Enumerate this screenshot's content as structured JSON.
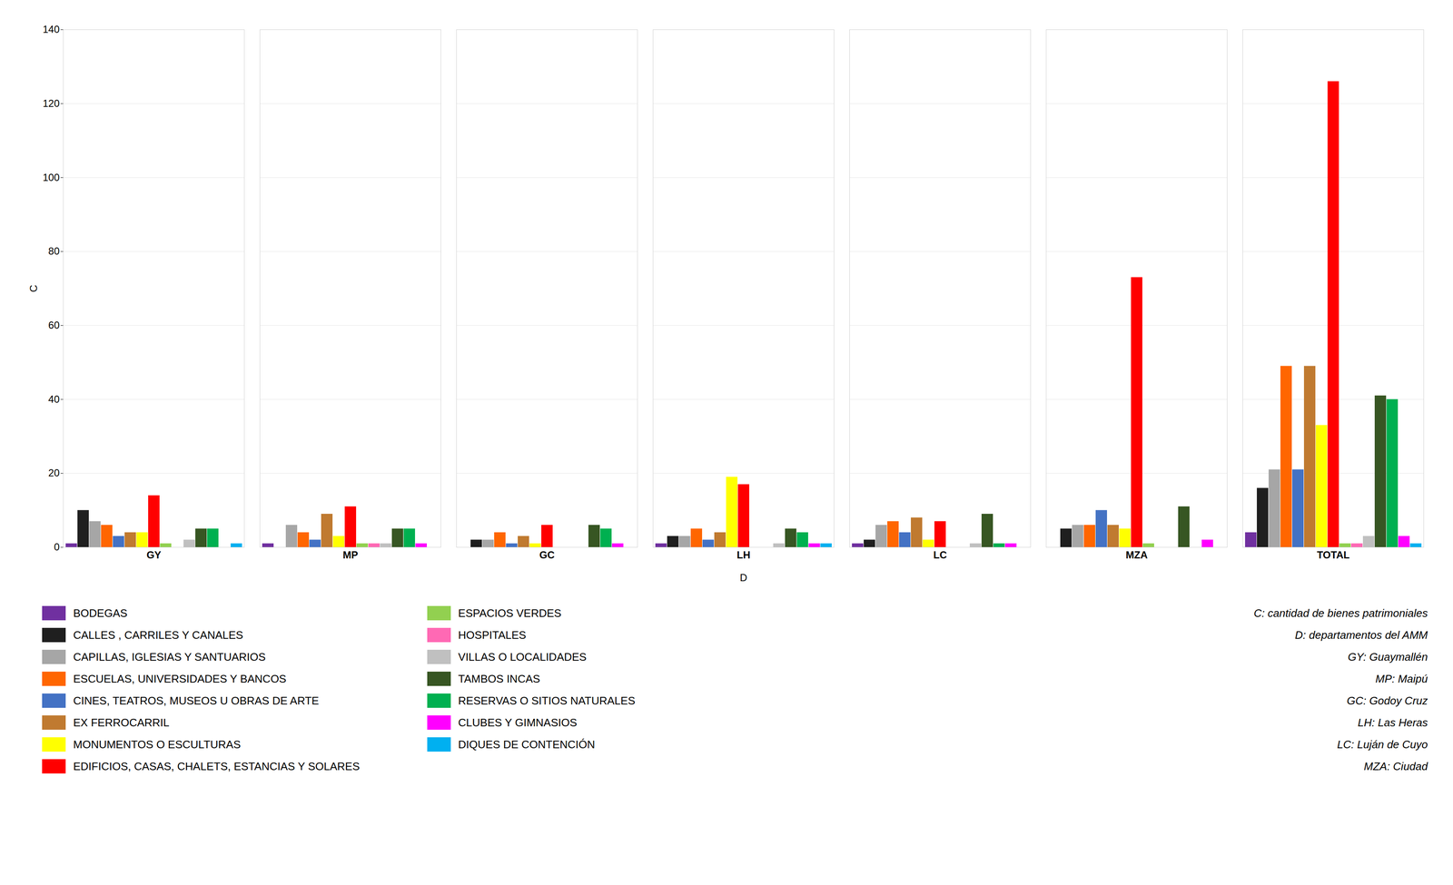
{
  "chart_data": {
    "type": "bar",
    "categories": [
      "GY",
      "MP",
      "GC",
      "LH",
      "LC",
      "MZA",
      "TOTAL"
    ],
    "series": [
      {
        "name": "BODEGAS",
        "color": "#7030A0",
        "values": [
          1,
          1,
          0,
          1,
          1,
          0,
          4
        ]
      },
      {
        "name": "CALLES , CARRILES Y CANALES",
        "color": "#1F1F1F",
        "values": [
          10,
          0,
          2,
          3,
          2,
          5,
          16
        ]
      },
      {
        "name": "CAPILLAS, IGLESIAS Y SANTUARIOS",
        "color": "#A6A6A6",
        "values": [
          7,
          6,
          2,
          3,
          6,
          6,
          21
        ]
      },
      {
        "name": "ESCUELAS, UNIVERSIDADES Y BANCOS",
        "color": "#FF6600",
        "values": [
          6,
          4,
          4,
          5,
          7,
          6,
          49
        ]
      },
      {
        "name": "CINES, TEATROS, MUSEOS U OBRAS DE ARTE",
        "color": "#4472C4",
        "values": [
          3,
          2,
          1,
          2,
          4,
          10,
          21
        ]
      },
      {
        "name": "EX FERROCARRIL",
        "color": "#C07A30",
        "values": [
          4,
          9,
          3,
          4,
          8,
          6,
          49
        ]
      },
      {
        "name": "MONUMENTOS O ESCULTURAS",
        "color": "#FFFF00",
        "values": [
          4,
          3,
          1,
          19,
          2,
          5,
          33
        ]
      },
      {
        "name": "EDIFICIOS, CASAS, CHALETS, ESTANCIAS Y SOLARES",
        "color": "#FF0000",
        "values": [
          14,
          11,
          6,
          17,
          7,
          73,
          126
        ]
      },
      {
        "name": "ESPACIOS VERDES",
        "color": "#92D050",
        "values": [
          1,
          1,
          0,
          0,
          0,
          1,
          1
        ]
      },
      {
        "name": "HOSPITALES",
        "color": "#FF69B4",
        "values": [
          0,
          1,
          0,
          0,
          0,
          0,
          1
        ]
      },
      {
        "name": "VILLAS O LOCALIDADES",
        "color": "#C0C0C0",
        "values": [
          2,
          1,
          0,
          1,
          1,
          0,
          3
        ]
      },
      {
        "name": "TAMBOS INCAS",
        "color": "#375623",
        "values": [
          5,
          5,
          6,
          5,
          9,
          11,
          41
        ]
      },
      {
        "name": "RESERVAS O SITIOS NATURALES",
        "color": "#00B050",
        "values": [
          5,
          5,
          5,
          4,
          1,
          0,
          40
        ]
      },
      {
        "name": "CLUBES Y GIMNASIOS",
        "color": "#FF00FF",
        "values": [
          0,
          1,
          1,
          1,
          1,
          2,
          3
        ]
      },
      {
        "name": "DIQUES DE CONTENCIÓN",
        "color": "#00B0F0",
        "values": [
          1,
          0,
          0,
          1,
          0,
          0,
          1
        ]
      }
    ],
    "xlabel": "D",
    "ylabel": "C",
    "ylim": [
      0,
      140
    ],
    "yticks": [
      0,
      20,
      40,
      60,
      80,
      100,
      120,
      140
    ],
    "grid": true,
    "legend": "bottom",
    "annotations": [
      "C: cantidad de bienes patrimoniales",
      "D: departamentos del AMM",
      "GY: Guaymallén",
      "MP: Maipú",
      "GC: Godoy Cruz",
      "LH: Las Heras",
      "LC: Luján de Cuyo",
      "MZA: Ciudad"
    ]
  }
}
